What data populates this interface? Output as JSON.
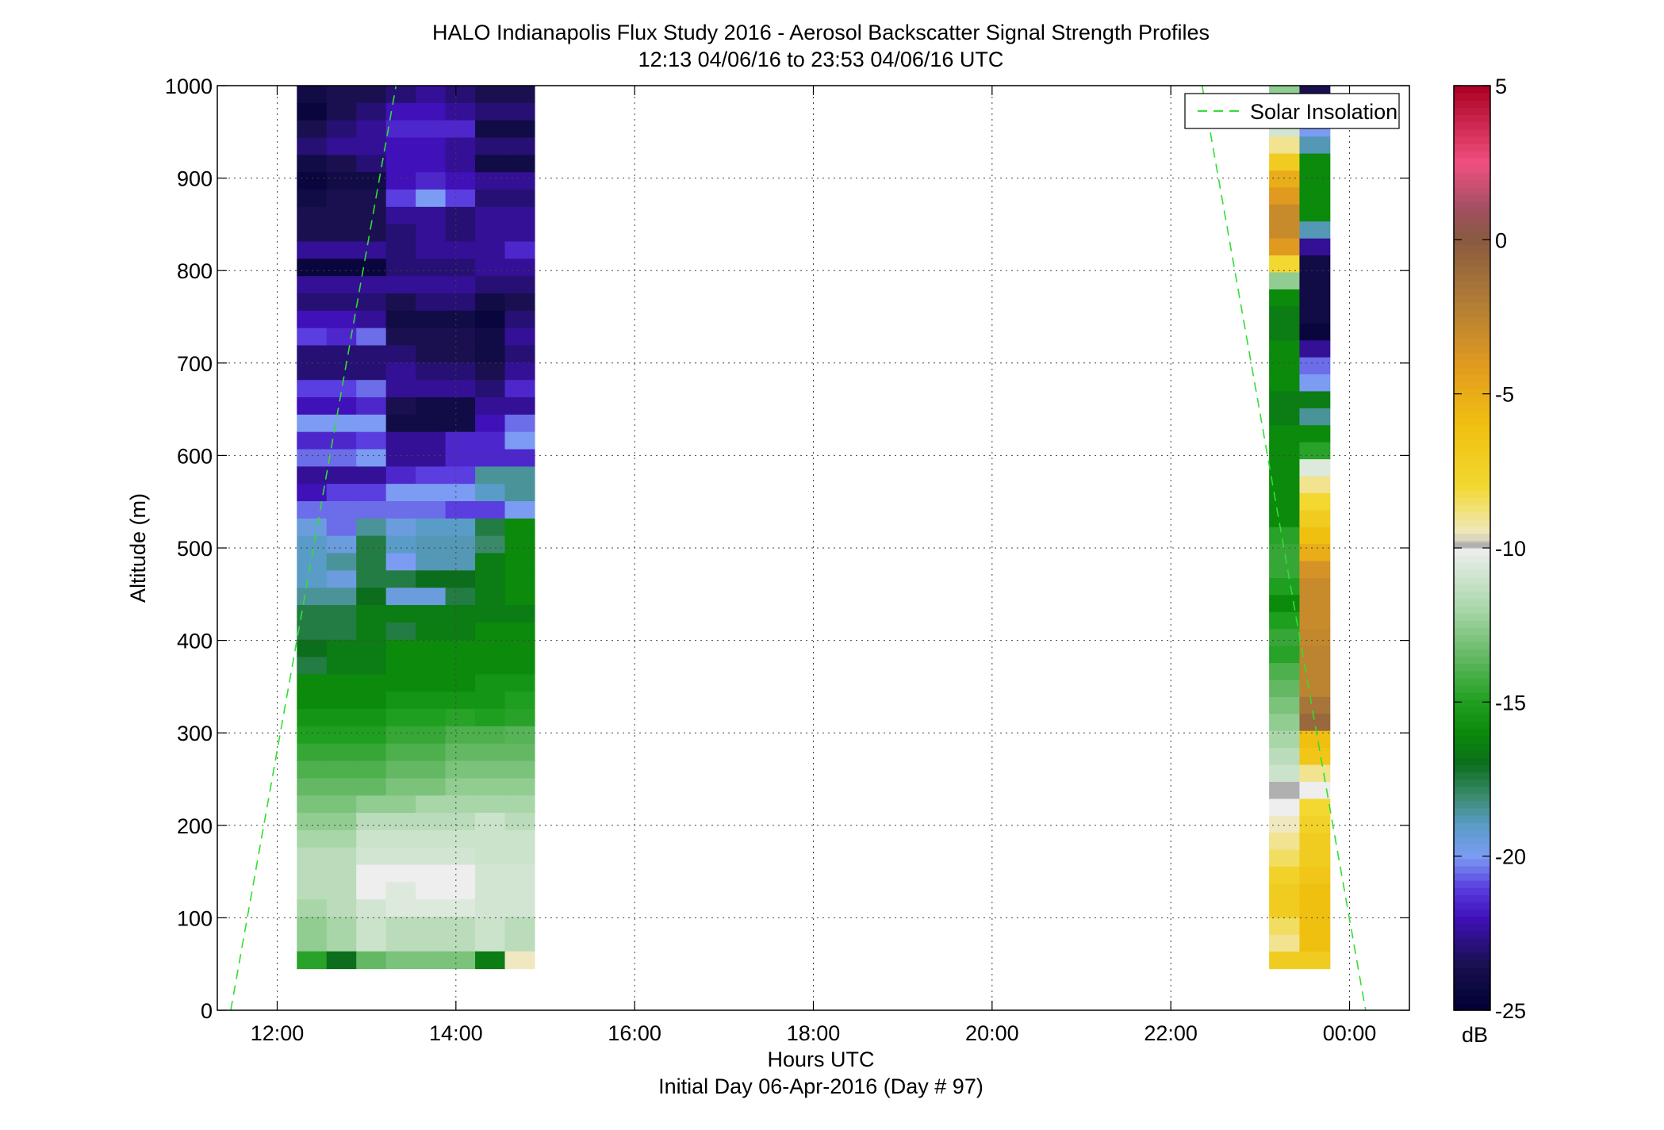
{
  "chart_data": {
    "type": "heatmap",
    "title": "HALO Indianapolis Flux Study 2016 - Aerosol Backscatter Signal Strength Profiles",
    "subtitle": "12:13 04/06/16 to 23:53 04/06/16  UTC",
    "xlabel": "Hours UTC",
    "xlabel2": "Initial Day 06-Apr-2016 (Day # 97)",
    "ylabel": "Altitude (m)",
    "xlim": [
      11.33,
      24.67
    ],
    "ylim": [
      0,
      1000
    ],
    "x_ticks": [
      {
        "value": 12,
        "label": "12:00"
      },
      {
        "value": 14,
        "label": "14:00"
      },
      {
        "value": 16,
        "label": "16:00"
      },
      {
        "value": 18,
        "label": "18:00"
      },
      {
        "value": 20,
        "label": "20:00"
      },
      {
        "value": 22,
        "label": "22:00"
      },
      {
        "value": 24,
        "label": "00:00"
      }
    ],
    "y_ticks": [
      {
        "value": 0,
        "label": "0"
      },
      {
        "value": 100,
        "label": "100"
      },
      {
        "value": 200,
        "label": "200"
      },
      {
        "value": 300,
        "label": "300"
      },
      {
        "value": 400,
        "label": "400"
      },
      {
        "value": 500,
        "label": "500"
      },
      {
        "value": 600,
        "label": "600"
      },
      {
        "value": 700,
        "label": "700"
      },
      {
        "value": 800,
        "label": "800"
      },
      {
        "value": 900,
        "label": "900"
      },
      {
        "value": 1000,
        "label": "1000"
      }
    ],
    "grid": true,
    "colorbar": {
      "label": "dB",
      "range": [
        -25,
        5
      ],
      "ticks": [
        {
          "value": 5,
          "label": "5"
        },
        {
          "value": 0,
          "label": "0"
        },
        {
          "value": -5,
          "label": "-5"
        },
        {
          "value": -10,
          "label": "-10"
        },
        {
          "value": -15,
          "label": "-15"
        },
        {
          "value": -20,
          "label": "-20"
        },
        {
          "value": -25,
          "label": "-25"
        }
      ]
    },
    "legend": {
      "position": "top-right",
      "entries": [
        {
          "name": "Solar Insolation",
          "color": "#33dd33",
          "style": "dashed"
        }
      ]
    },
    "solar_insolation_line": [
      {
        "x": [
          11.48,
          13.33
        ],
        "y": [
          0,
          1000
        ]
      },
      {
        "x": [
          22.35,
          24.18
        ],
        "y": [
          1000,
          0
        ]
      }
    ],
    "profile_blocks": [
      {
        "x_start": 12.22,
        "x_end": 14.88,
        "columns": 8,
        "alt_bottom": 45,
        "alt_top": 1000,
        "description_of_levels": "dB per column (left to right), rows from top altitude downward",
        "rows_db": [
          [
            -24,
            -23.5,
            -23.5,
            -23,
            -22.5,
            -23,
            -23.5,
            -23.5
          ],
          [
            -24.5,
            -23.5,
            -23,
            -22,
            -22,
            -22.5,
            -23,
            -23
          ],
          [
            -23.5,
            -23,
            -22.5,
            -21.5,
            -21.5,
            -21.5,
            -24,
            -24
          ],
          [
            -23,
            -22.5,
            -22.5,
            -22,
            -22,
            -22.5,
            -23,
            -23
          ],
          [
            -24,
            -23.5,
            -23,
            -22,
            -22,
            -22.5,
            -24,
            -24
          ],
          [
            -24.5,
            -24,
            -24,
            -22,
            -21.5,
            -22,
            -22.5,
            -22.5
          ],
          [
            -24,
            -23.5,
            -23.5,
            -21,
            -20,
            -21,
            -23,
            -23
          ],
          [
            -23.5,
            -23.5,
            -23.5,
            -22.5,
            -22.5,
            -23,
            -22.5,
            -22.5
          ],
          [
            -23.5,
            -23.5,
            -23.5,
            -23,
            -22.5,
            -23,
            -22.5,
            -22.5
          ],
          [
            -22.5,
            -22.5,
            -22.5,
            -23,
            -22.5,
            -22.5,
            -22.5,
            -21.5
          ],
          [
            -24.5,
            -24.5,
            -24.5,
            -23,
            -23,
            -23,
            -22.5,
            -22.5
          ],
          [
            -22.5,
            -22.5,
            -22.5,
            -22.5,
            -22.5,
            -22.5,
            -23,
            -23
          ],
          [
            -23,
            -23,
            -23,
            -23.5,
            -23,
            -23,
            -24,
            -23.5
          ],
          [
            -22,
            -22,
            -22.5,
            -24,
            -24,
            -24,
            -24.5,
            -23
          ],
          [
            -21,
            -21.5,
            -20.5,
            -23.5,
            -23.5,
            -23.5,
            -24,
            -22.5
          ],
          [
            -23,
            -23,
            -23,
            -23,
            -23.5,
            -23.5,
            -24,
            -23
          ],
          [
            -23,
            -23,
            -23,
            -22.5,
            -23,
            -23,
            -23.5,
            -22.5
          ],
          [
            -21,
            -21,
            -20.5,
            -22.5,
            -22.5,
            -22.5,
            -23,
            -21.5
          ],
          [
            -22,
            -22,
            -21.5,
            -23.5,
            -24,
            -24,
            -22.5,
            -22.5
          ],
          [
            -20,
            -20,
            -20,
            -24,
            -24,
            -24,
            -22,
            -20.5
          ],
          [
            -21.5,
            -21.5,
            -21,
            -22.5,
            -22.5,
            -21.5,
            -21.5,
            -20
          ],
          [
            -20.5,
            -20.5,
            -20,
            -22.5,
            -22.5,
            -21.5,
            -21.5,
            -21.5
          ],
          [
            -22.5,
            -22.5,
            -22.5,
            -21.5,
            -21,
            -21,
            -18.5,
            -18.5
          ],
          [
            -22,
            -21,
            -21,
            -20,
            -20,
            -20,
            -19,
            -18.5
          ],
          [
            -20.5,
            -20.5,
            -20.5,
            -20.5,
            -20.5,
            -21,
            -21,
            -20
          ],
          [
            -19.5,
            -20.5,
            -18.5,
            -19.5,
            -19,
            -19,
            -17.5,
            -16
          ],
          [
            -19,
            -19.5,
            -17.5,
            -19,
            -18.8,
            -18.8,
            -18,
            -16
          ],
          [
            -19,
            -18.5,
            -17.5,
            -20,
            -18.8,
            -18.8,
            -16.5,
            -16
          ],
          [
            -19,
            -19.5,
            -17.5,
            -17.5,
            -17,
            -17,
            -16.5,
            -16
          ],
          [
            -18.5,
            -18.5,
            -17,
            -19.5,
            -19.5,
            -17.5,
            -16.5,
            -16
          ],
          [
            -17.5,
            -17.5,
            -16.5,
            -16.5,
            -16.5,
            -16.5,
            -16.5,
            -16.5
          ],
          [
            -17.5,
            -17.5,
            -16.5,
            -17.5,
            -16.5,
            -16.5,
            -16,
            -16
          ],
          [
            -17,
            -16.5,
            -16.5,
            -16,
            -16,
            -16,
            -16,
            -16
          ],
          [
            -17.5,
            -16.5,
            -16.5,
            -16,
            -16,
            -16,
            -16,
            -16
          ],
          [
            -16,
            -16,
            -16,
            -16,
            -16,
            -16,
            -15.5,
            -15.5
          ],
          [
            -16,
            -16,
            -16,
            -15.5,
            -15.5,
            -15.5,
            -15.5,
            -15
          ],
          [
            -15.5,
            -15.5,
            -15.5,
            -15,
            -15,
            -14.8,
            -15,
            -14.8
          ],
          [
            -15,
            -15,
            -15,
            -14.5,
            -14.5,
            -14,
            -14,
            -13.8
          ],
          [
            -14.5,
            -14.5,
            -14.5,
            -14,
            -14,
            -13.5,
            -13.5,
            -13.5
          ],
          [
            -14,
            -14,
            -14,
            -13.5,
            -13.5,
            -13,
            -13,
            -13
          ],
          [
            -13.5,
            -13.5,
            -13.5,
            -13,
            -13,
            -12.5,
            -12.5,
            -12.5
          ],
          [
            -13,
            -13,
            -12.5,
            -12.5,
            -12,
            -12,
            -12,
            -12
          ],
          [
            -12.5,
            -12.5,
            -11.5,
            -11.5,
            -11.5,
            -11.5,
            -11,
            -11.5
          ],
          [
            -12,
            -12,
            -11,
            -11,
            -11,
            -11,
            -11,
            -11
          ],
          [
            -11.5,
            -11.5,
            -10.8,
            -10.8,
            -10.8,
            -10.8,
            -11,
            -11
          ],
          [
            -11.5,
            -11.5,
            -10,
            -10,
            -10,
            -10,
            -10.8,
            -10.8
          ],
          [
            -11.5,
            -11.5,
            -10,
            -10.5,
            -10,
            -10,
            -10.8,
            -10.8
          ],
          [
            -12,
            -11.5,
            -10.8,
            -10.5,
            -10.5,
            -10.5,
            -10.8,
            -10.8
          ],
          [
            -12.5,
            -12,
            -11,
            -11.5,
            -11.5,
            -11.5,
            -11,
            -11.5
          ],
          [
            -12.5,
            -12,
            -11,
            -11.5,
            -11.5,
            -11.5,
            -11,
            -11.5
          ],
          [
            -14.8,
            -17,
            -13.5,
            -13,
            -13,
            -13,
            -16.5,
            -9.5
          ]
        ]
      },
      {
        "x_start": 23.1,
        "x_end": 23.78,
        "columns": 2,
        "alt_bottom": 45,
        "alt_top": 1000,
        "rows_db": [
          [
            -12.5,
            -23.5
          ],
          [
            -11.5,
            -21
          ],
          [
            -10.8,
            -20
          ],
          [
            -9,
            -18.8
          ],
          [
            -7,
            -16
          ],
          [
            -5,
            -16
          ],
          [
            -4,
            -16
          ],
          [
            -3,
            -16
          ],
          [
            -3,
            -18.8
          ],
          [
            -4,
            -22.5
          ],
          [
            -8,
            -24
          ],
          [
            -12.5,
            -24
          ],
          [
            -16,
            -24
          ],
          [
            -16.5,
            -24
          ],
          [
            -16.5,
            -24.5
          ],
          [
            -16,
            -22.5
          ],
          [
            -16,
            -20.5
          ],
          [
            -16,
            -20
          ],
          [
            -16.5,
            -16.5
          ],
          [
            -16.5,
            -18.5
          ],
          [
            -16,
            -16
          ],
          [
            -16,
            -14.8
          ],
          [
            -16,
            -10.5
          ],
          [
            -16,
            -9
          ],
          [
            -16,
            -8
          ],
          [
            -16,
            -7
          ],
          [
            -14.8,
            -6
          ],
          [
            -14.5,
            -5
          ],
          [
            -14.5,
            -3.5
          ],
          [
            -15,
            -3
          ],
          [
            -16,
            -3
          ],
          [
            -15,
            -3
          ],
          [
            -14.5,
            -2.8
          ],
          [
            -14.8,
            -2.5
          ],
          [
            -14,
            -2.5
          ],
          [
            -13.5,
            -2.5
          ],
          [
            -13,
            -1.5
          ],
          [
            -12.5,
            -0.8
          ],
          [
            -12,
            -6
          ],
          [
            -11.5,
            -6.5
          ],
          [
            -11,
            -9
          ],
          [
            -9.99,
            -10
          ],
          [
            -10,
            -8
          ],
          [
            -9.5,
            -7.5
          ],
          [
            -9,
            -7
          ],
          [
            -8.5,
            -7
          ],
          [
            -7.5,
            -6.5
          ],
          [
            -7,
            -6
          ],
          [
            -7,
            -6
          ],
          [
            -8.5,
            -6
          ],
          [
            -9,
            -6
          ],
          [
            -7,
            -7
          ]
        ]
      }
    ],
    "color_palette": {
      "stops": [
        {
          "db": -25,
          "color": "#000033"
        },
        {
          "db": -23.5,
          "color": "#1a1050"
        },
        {
          "db": -22,
          "color": "#4010b8"
        },
        {
          "db": -21,
          "color": "#5a3ee0"
        },
        {
          "db": -20,
          "color": "#7b9cf2"
        },
        {
          "db": -19,
          "color": "#5a9cc8"
        },
        {
          "db": -18,
          "color": "#3a8a6a"
        },
        {
          "db": -17,
          "color": "#0c6e1c"
        },
        {
          "db": -16,
          "color": "#0b8a0b"
        },
        {
          "db": -15,
          "color": "#1f9f1f"
        },
        {
          "db": -13.5,
          "color": "#64b864"
        },
        {
          "db": -12,
          "color": "#a8d6a8"
        },
        {
          "db": -10.5,
          "color": "#dde9dd"
        },
        {
          "db": -10,
          "color": "#eeeeee"
        },
        {
          "db": -9.99,
          "color": "#b0b0b0"
        },
        {
          "db": -9.5,
          "color": "#f0e8c0"
        },
        {
          "db": -8,
          "color": "#f2d830"
        },
        {
          "db": -6,
          "color": "#f0c010"
        },
        {
          "db": -4,
          "color": "#e09a20"
        },
        {
          "db": -2,
          "color": "#b07c36"
        },
        {
          "db": 0,
          "color": "#8a5a40"
        },
        {
          "db": 1,
          "color": "#a05060"
        },
        {
          "db": 2.5,
          "color": "#f05080"
        },
        {
          "db": 5,
          "color": "#aa0022"
        }
      ],
      "no_data_gray": "#b0b0b0"
    }
  }
}
